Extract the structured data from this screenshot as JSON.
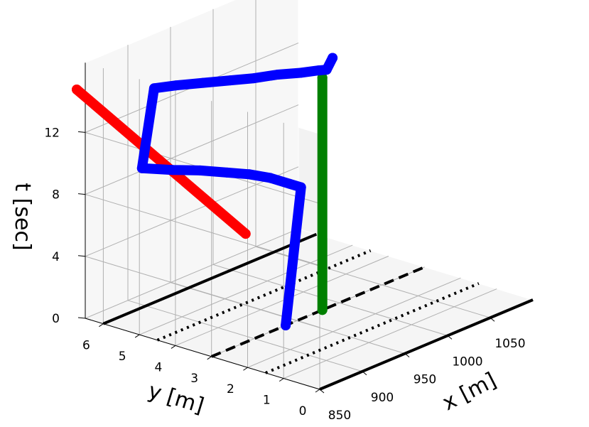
{
  "chart_data": {
    "type": "line3d",
    "xlabel": "x [m]",
    "ylabel": "y [m]",
    "zlabel": "t [sec]",
    "x_ticks": [
      850,
      900,
      950,
      1000,
      1050
    ],
    "y_ticks": [
      0,
      1,
      2,
      3,
      4,
      5,
      6
    ],
    "z_ticks": [
      0,
      4,
      8,
      12
    ],
    "grid": true,
    "colors": {
      "red": "#ff0000",
      "blue": "#0000ff",
      "green": "#008000",
      "lane": "#000000",
      "pane": "#f2f2f2",
      "grid": "#b0b0b0"
    },
    "lanes": [
      {
        "y": 0,
        "style": "solid"
      },
      {
        "y": 1.5,
        "style": "dotted"
      },
      {
        "y": 3,
        "style": "dashed"
      },
      {
        "y": 4.5,
        "style": "dotted"
      },
      {
        "y": 6,
        "style": "solid"
      }
    ],
    "series": [
      {
        "color": "red",
        "points": [
          [
            890,
            3,
            7
          ],
          [
            840,
            6.5,
            15
          ]
        ]
      },
      {
        "color": "green",
        "points": [
          [
            980,
            3,
            0
          ],
          [
            980,
            3,
            15
          ]
        ]
      },
      {
        "color": "blue",
        "points": [
          [
            937,
            3,
            0
          ],
          [
            955,
            3,
            8.5
          ],
          [
            950,
            3.2,
            8.7
          ],
          [
            940,
            3.5,
            9.1
          ],
          [
            928,
            3.8,
            9.4
          ],
          [
            915,
            4.1,
            9.6
          ],
          [
            900,
            4.5,
            9.8
          ],
          [
            885,
            4.9,
            9.9
          ],
          [
            870,
            5.4,
            10
          ],
          [
            880,
            5.3,
            15
          ],
          [
            893,
            5,
            15.1
          ],
          [
            908,
            4.6,
            15.2
          ],
          [
            923,
            4.2,
            15.3
          ],
          [
            938,
            3.9,
            15.3
          ],
          [
            953,
            3.6,
            15.4
          ],
          [
            967,
            3.3,
            15.4
          ],
          [
            980,
            3.1,
            15.4
          ],
          [
            985,
            3,
            15.4
          ],
          [
            992,
            3,
            16
          ]
        ]
      }
    ]
  }
}
